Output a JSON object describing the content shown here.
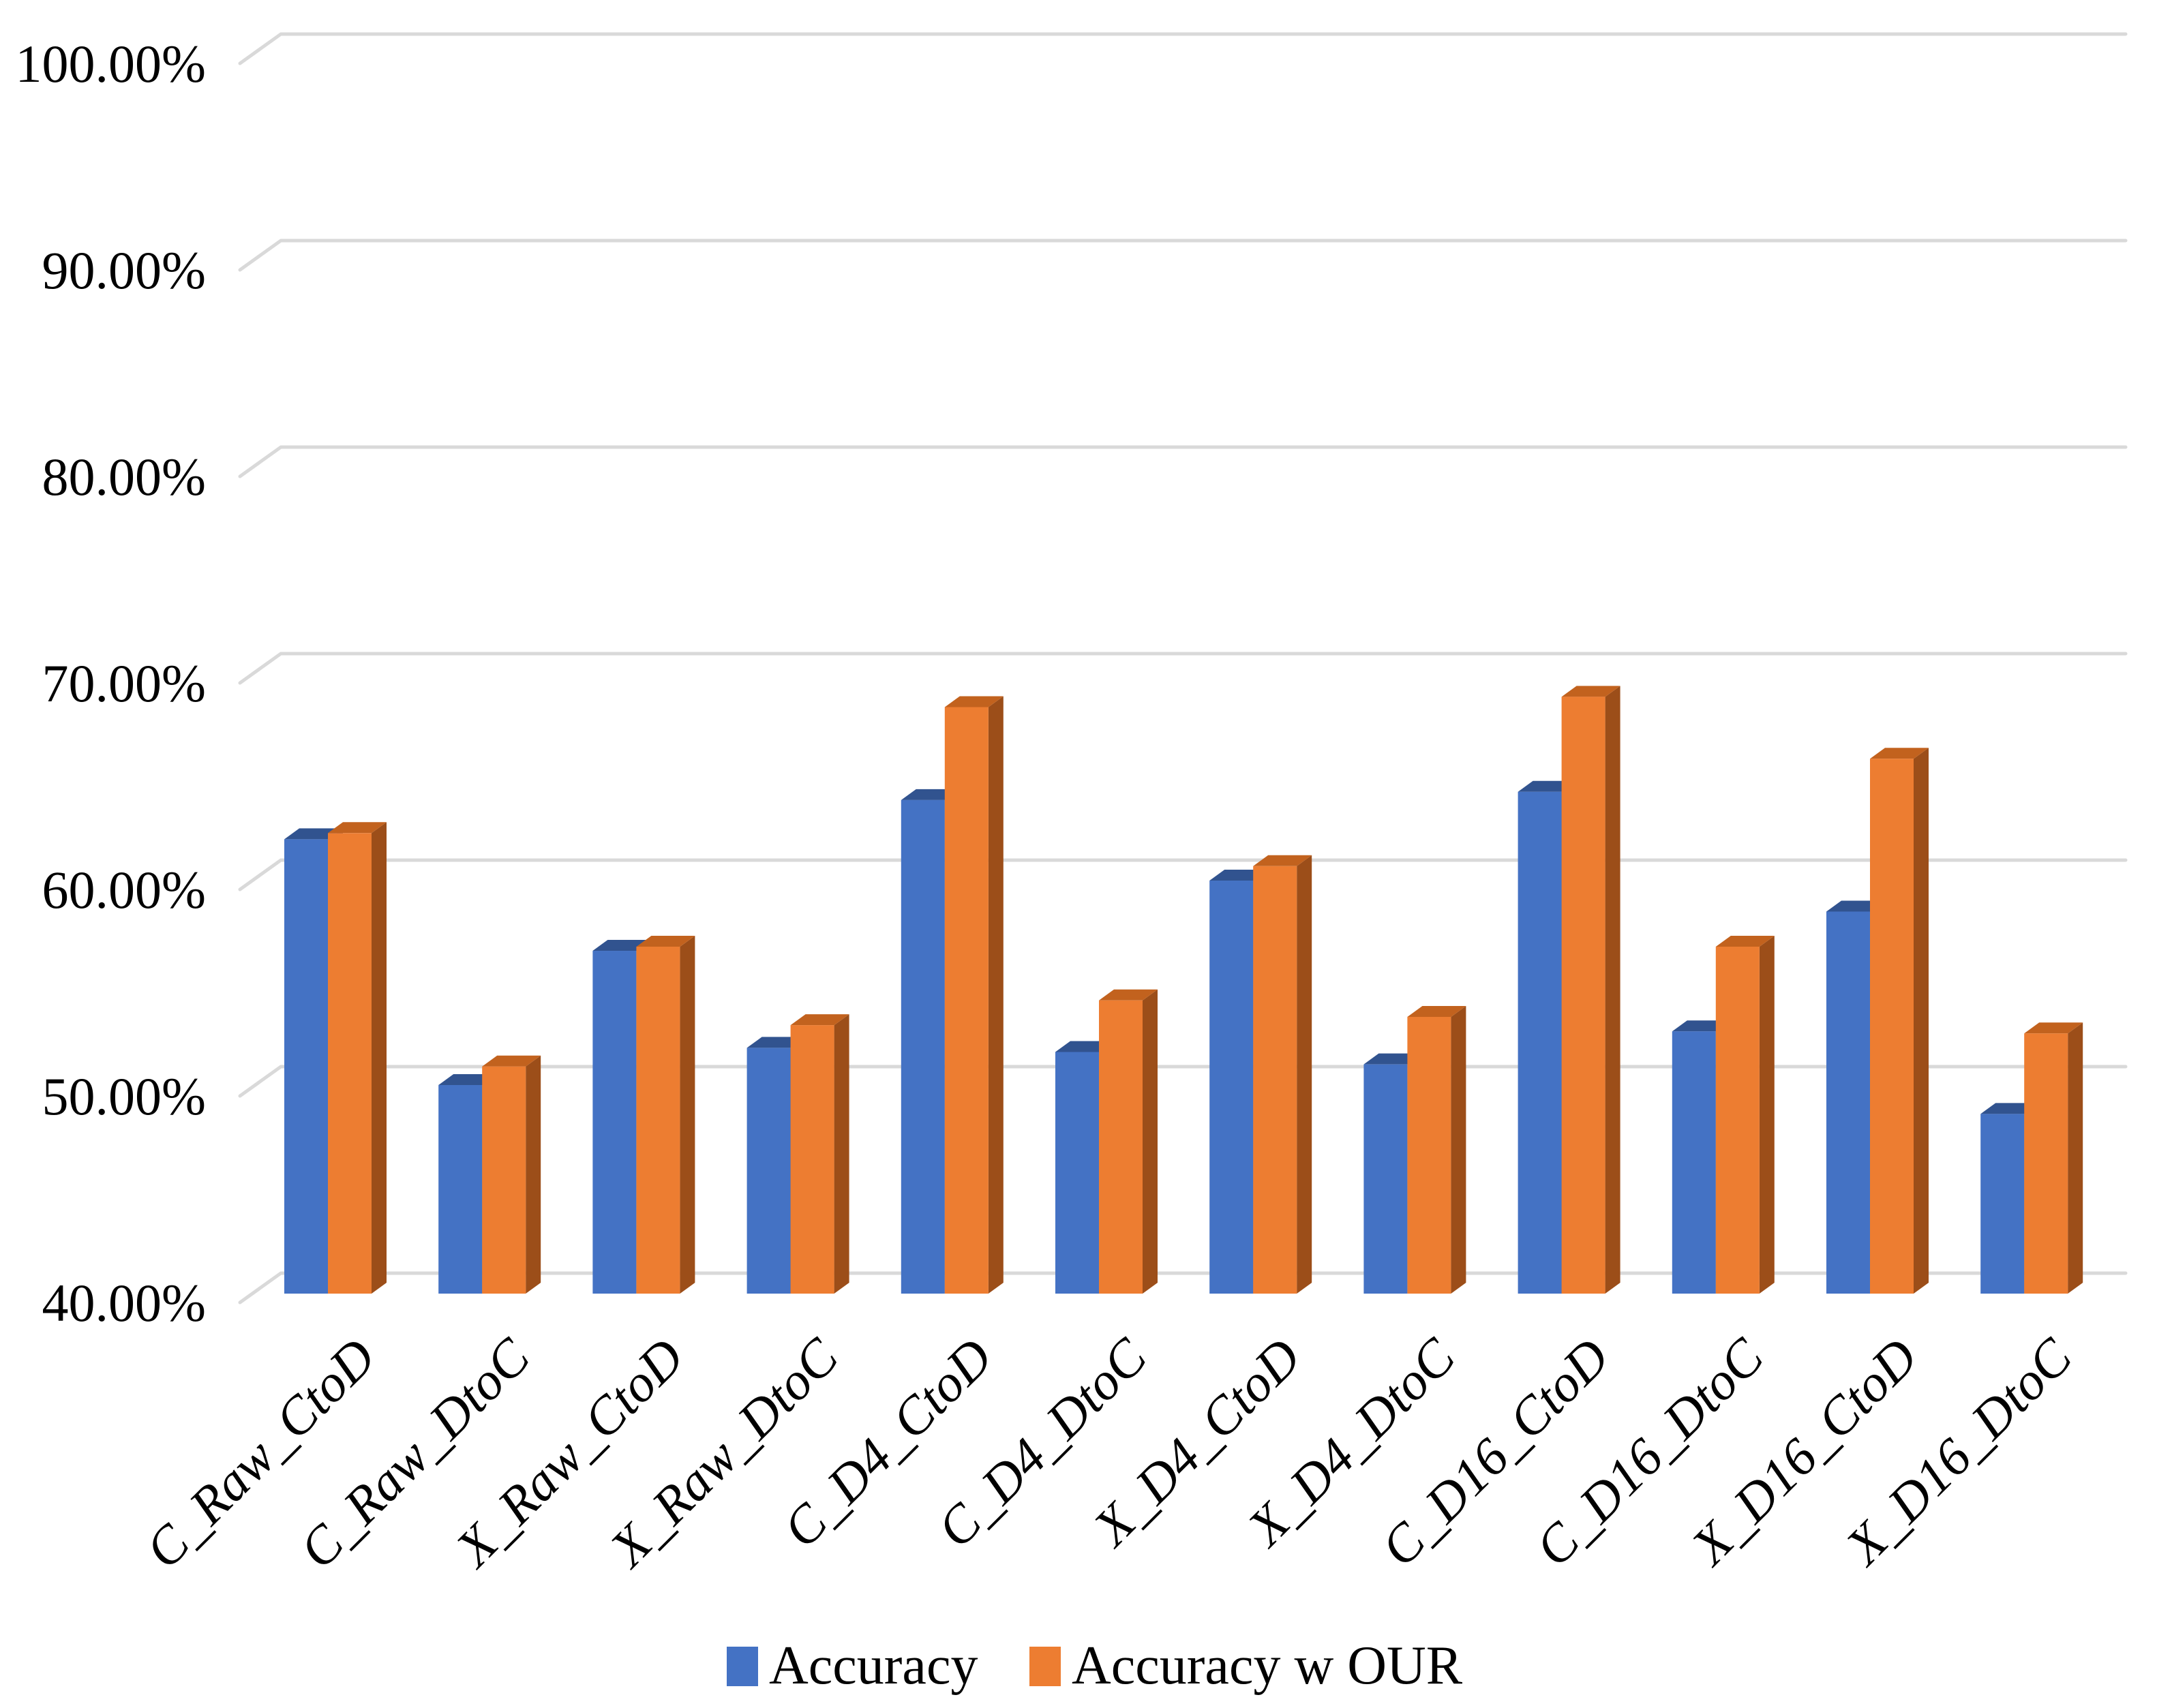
{
  "chart_data": {
    "type": "bar",
    "style": "3d-clustered-column",
    "title": "",
    "xlabel": "",
    "ylabel": "",
    "values_unit": "percent",
    "ylim": [
      40,
      100
    ],
    "grid": true,
    "legend_position": "bottom",
    "background": "#FFFFFF",
    "gridline_color": "#D9D9D9",
    "text_color": "#000000",
    "categories": [
      "C_Raw_CtoD",
      "C_Raw_DtoC",
      "X_Raw_CtoD",
      "X_Raw_DtoC",
      "C_D4_CtoD",
      "C_D4_DtoC",
      "X_D4_CtoD",
      "X_D4_DtoC",
      "C_D16_CtoD",
      "C_D16_DtoC",
      "X_D16_CtoD",
      "X_D16_DtoC"
    ],
    "series": [
      {
        "name": "Accuracy",
        "color": "#4472C4",
        "shade_top": "#31538F",
        "shade_side": "#27426F",
        "values": [
          62.0,
          50.1,
          56.6,
          51.9,
          63.9,
          51.7,
          60.0,
          51.1,
          64.3,
          52.7,
          58.5,
          48.7
        ]
      },
      {
        "name": "Accuracy w OUR",
        "color": "#ED7D31",
        "shade_top": "#C2621E",
        "shade_side": "#9C4E19",
        "values": [
          62.3,
          51.0,
          56.8,
          53.0,
          68.4,
          54.2,
          60.7,
          53.4,
          68.9,
          56.8,
          65.9,
          52.6
        ]
      }
    ],
    "y_ticks": [
      {
        "value": 100,
        "label": "100.00%"
      },
      {
        "value": 90,
        "label": "90.00%"
      },
      {
        "value": 80,
        "label": "80.00%"
      },
      {
        "value": 70,
        "label": "70.00%"
      },
      {
        "value": 60,
        "label": "60.00%"
      },
      {
        "value": 50,
        "label": "50.00%"
      },
      {
        "value": 40,
        "label": "40.00%"
      }
    ]
  }
}
